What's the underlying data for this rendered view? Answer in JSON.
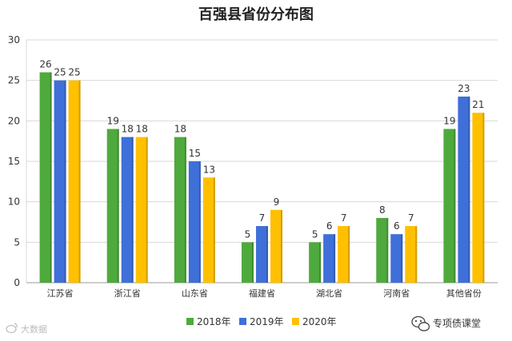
{
  "chart_data": {
    "type": "bar",
    "title": "百强县省份分布图",
    "categories": [
      "江苏省",
      "浙江省",
      "山东省",
      "福建省",
      "湖北省",
      "河南省",
      "其他省份"
    ],
    "series": [
      {
        "name": "2018年",
        "color": "#4EAA3C",
        "values": [
          26,
          19,
          18,
          5,
          5,
          8,
          19
        ]
      },
      {
        "name": "2019年",
        "color": "#3F6FD8",
        "values": [
          25,
          18,
          15,
          7,
          6,
          6,
          23
        ]
      },
      {
        "name": "2020年",
        "color": "#FFC000",
        "values": [
          25,
          18,
          13,
          9,
          7,
          7,
          21
        ]
      }
    ],
    "ylim": [
      0,
      30
    ],
    "yticks": [
      0,
      5,
      10,
      15,
      20,
      25,
      30
    ],
    "xlabel": "",
    "ylabel": "",
    "grid": true,
    "legend_position": "bottom"
  },
  "watermark": {
    "right_text": "专项债课堂",
    "left_text": "大数据"
  }
}
